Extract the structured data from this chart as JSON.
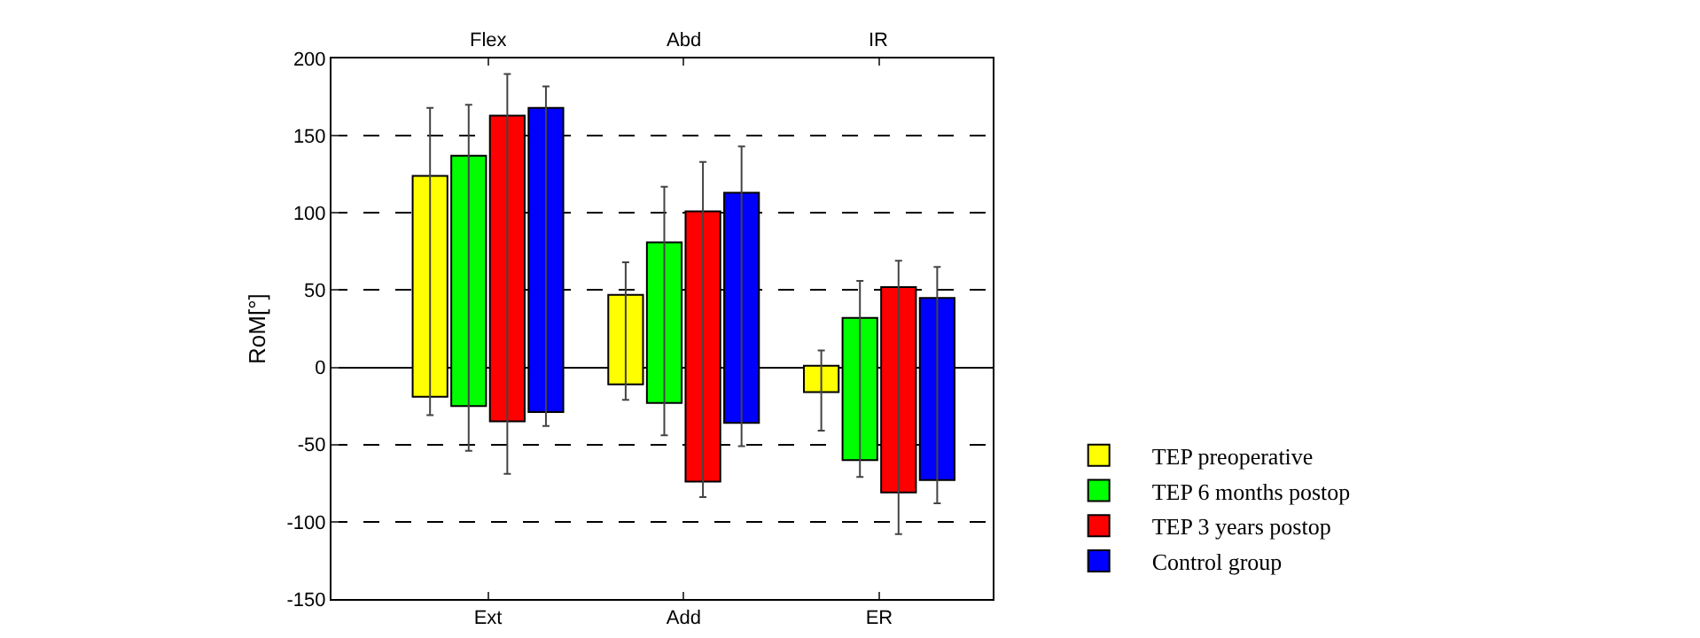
{
  "chart_data": {
    "type": "bar",
    "ylabel": "RoM[°]",
    "categories": [
      "Ext",
      "Add",
      "ER"
    ],
    "annotations": [
      "Flex",
      "Abd",
      "IR"
    ],
    "ylim": [
      -150,
      200
    ],
    "yticks": [
      -150,
      -100,
      -50,
      0,
      50,
      100,
      150,
      200
    ],
    "grid": "y",
    "legend": "bottom right",
    "series": [
      {
        "name": "TEP preoperative",
        "color": "#ffff00",
        "base": [
          -19,
          -11,
          -16
        ],
        "values": [
          143,
          58,
          17
        ],
        "errors": [
          [
            -31,
            168
          ],
          [
            -21,
            68
          ],
          [
            -41,
            11
          ]
        ]
      },
      {
        "name": "TEP 6 months postop",
        "color": "#00ff00",
        "base": [
          -25,
          -23,
          -60
        ],
        "values": [
          162,
          104,
          92
        ],
        "errors": [
          [
            -54,
            170
          ],
          [
            -44,
            117
          ],
          [
            -71,
            56
          ]
        ]
      },
      {
        "name": "TEP 3 years postop",
        "color": "#ff0000",
        "base": [
          -35,
          -74,
          -81
        ],
        "values": [
          198,
          175,
          133
        ],
        "errors": [
          [
            -69,
            190
          ],
          [
            -84,
            133
          ],
          [
            -108,
            69
          ]
        ]
      },
      {
        "name": "Control group",
        "color": "#0000ff",
        "base": [
          -29,
          -36,
          -73
        ],
        "values": [
          197,
          149,
          118
        ],
        "errors": [
          [
            -38,
            182
          ],
          [
            -51,
            143
          ],
          [
            -88,
            65
          ]
        ]
      }
    ]
  }
}
